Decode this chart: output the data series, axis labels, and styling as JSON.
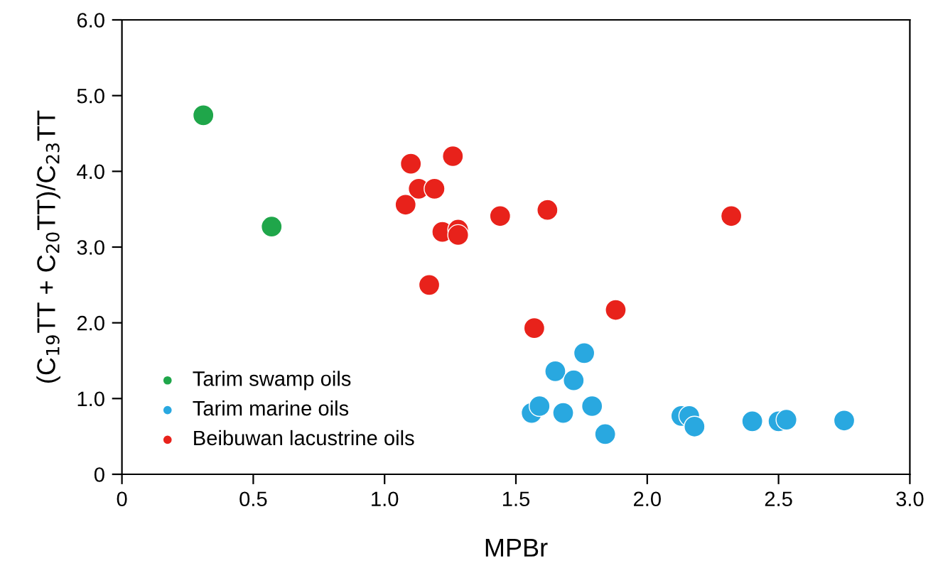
{
  "chart_data": {
    "type": "scatter",
    "xlabel": "MPBr",
    "ylabel": "(C$_{19}$TT + C$_{20}$TT)/C$_{23}$TT",
    "xlim": [
      0,
      3.0
    ],
    "ylim": [
      0,
      6.0
    ],
    "xticks": [
      0,
      0.5,
      {
        "value": 1,
        "label": "1.0"
      },
      1.5,
      {
        "value": 2,
        "label": "2.0"
      },
      2.5,
      {
        "value": 3,
        "label": "3.0"
      }
    ],
    "yticks": [
      0,
      {
        "value": 1,
        "label": "1.0"
      },
      {
        "value": 2,
        "label": "2.0"
      },
      {
        "value": 3,
        "label": "3.0"
      },
      {
        "value": 4,
        "label": "4.0"
      },
      {
        "value": 5,
        "label": "5.0"
      },
      {
        "value": 6,
        "label": "6.0"
      }
    ],
    "grid": false,
    "legend": "bottom left",
    "marker": "circle",
    "series": [
      {
        "name": "Tarim swamp oils",
        "color": "#1fa64a",
        "x": [
          0.31,
          0.57
        ],
        "values": [
          4.74,
          3.27
        ]
      },
      {
        "name": "Tarim marine oils",
        "color": "#29a8e0",
        "x": [
          1.56,
          1.59,
          1.65,
          1.68,
          1.72,
          1.76,
          1.79,
          1.84,
          2.13,
          2.16,
          2.18,
          2.4,
          2.5,
          2.53,
          2.75
        ],
        "values": [
          0.81,
          0.9,
          1.36,
          0.81,
          1.24,
          1.6,
          0.9,
          0.53,
          0.77,
          0.77,
          0.63,
          0.7,
          0.7,
          0.72,
          0.71
        ]
      },
      {
        "name": "Beibuwan lacustrine oils",
        "color": "#e8221b",
        "x": [
          1.1,
          1.26,
          1.13,
          1.19,
          1.08,
          1.44,
          1.62,
          2.32,
          1.22,
          1.28,
          1.28,
          1.17,
          1.57,
          1.88
        ],
        "values": [
          4.1,
          4.2,
          3.77,
          3.77,
          3.56,
          3.41,
          3.49,
          3.41,
          3.2,
          3.23,
          3.16,
          2.5,
          1.93,
          2.17
        ]
      }
    ]
  }
}
